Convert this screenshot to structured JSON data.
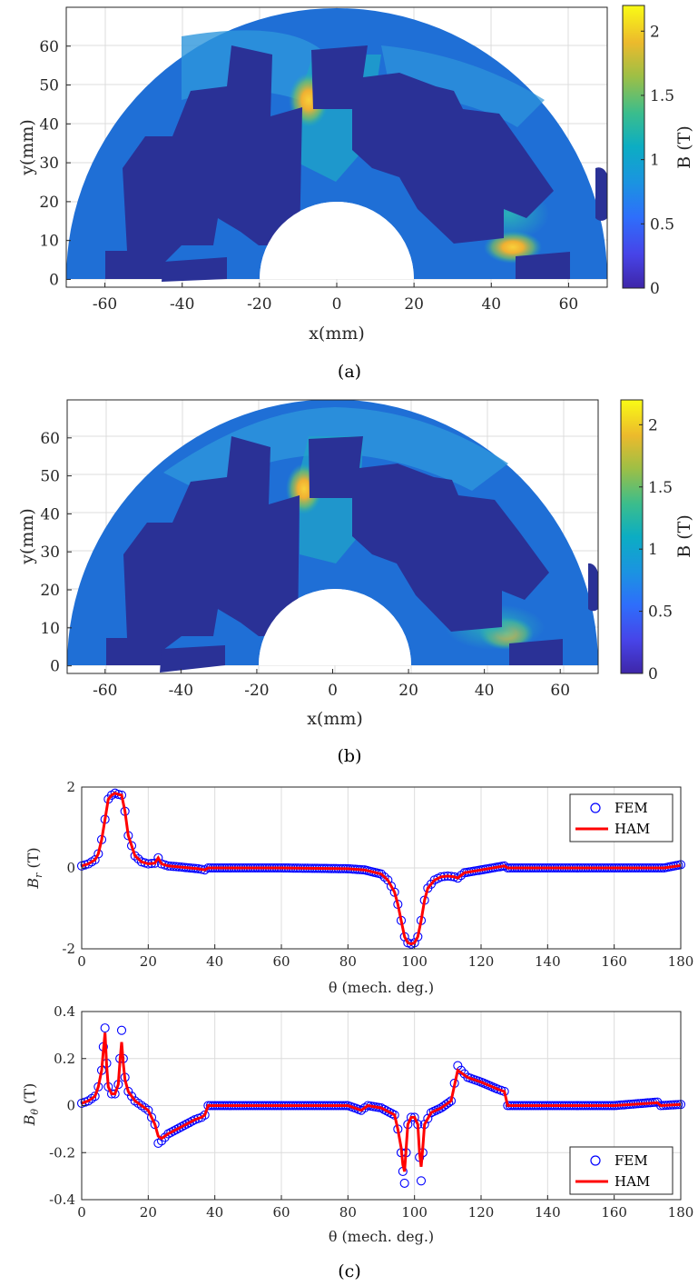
{
  "figure": {
    "caption_a": "(a)",
    "caption_b": "(b)",
    "caption_c": "(c)"
  },
  "colors": {
    "back_iron": "#2a3196",
    "iron_low": "#1f6fd6",
    "iron_mid": "#2d96dc",
    "iron_high": "#1fb3b0",
    "hotspot": "#f6b62e",
    "fem": "#0000ff",
    "ham": "#ff0000",
    "colormap": [
      "#3e26a8",
      "#4744e8",
      "#2e6efb",
      "#1b93e1",
      "#0cadc3",
      "#3bbd8c",
      "#9ebf45",
      "#ecba2c",
      "#f9fb15"
    ]
  },
  "chart_data": [
    {
      "type": "heatmap",
      "id": "a",
      "xlabel": "x(mm)",
      "ylabel": "y(mm)",
      "xlim": [
        -70,
        70
      ],
      "ylim": [
        -2,
        70
      ],
      "xticks": [
        "-60",
        "-40",
        "-20",
        "0",
        "20",
        "40",
        "60"
      ],
      "yticks": [
        "0",
        "10",
        "20",
        "30",
        "40",
        "50",
        "60"
      ],
      "colorbar": {
        "label": "B (T)",
        "range": [
          0,
          2.2
        ],
        "ticks": [
          "0",
          "0.5",
          "1",
          "1.5",
          "2"
        ]
      },
      "grid": true
    },
    {
      "type": "heatmap",
      "id": "b",
      "xlabel": "x(mm)",
      "ylabel": "y(mm)",
      "xlim": [
        -70,
        70
      ],
      "ylim": [
        -2,
        70
      ],
      "xticks": [
        "-60",
        "-40",
        "-20",
        "0",
        "20",
        "40",
        "60"
      ],
      "yticks": [
        "0",
        "10",
        "20",
        "30",
        "40",
        "50",
        "60"
      ],
      "colorbar": {
        "label": "B (T)",
        "range": [
          0,
          2.2
        ],
        "ticks": [
          "0",
          "0.5",
          "1",
          "1.5",
          "2"
        ]
      },
      "grid": true
    },
    {
      "type": "scatter",
      "id": "c-top",
      "xlabel": "θ (mech. deg.)",
      "ylabel": "B_r (T)",
      "ylabel_main": "B",
      "ylabel_sub": "r",
      "ylabel_unit": " (T)",
      "xlim": [
        0,
        180
      ],
      "ylim": [
        -2,
        2
      ],
      "xticks": [
        "0",
        "20",
        "40",
        "60",
        "80",
        "100",
        "120",
        "140",
        "160",
        "180"
      ],
      "yticks": [
        "-2",
        "0",
        "2"
      ],
      "legend": {
        "position": "top-right",
        "entries": [
          "FEM",
          "HAM"
        ]
      },
      "grid": true,
      "series": [
        {
          "name": "FEM",
          "style": "circle",
          "x": [
            0,
            2,
            4,
            5,
            6,
            7,
            8,
            9,
            10,
            11,
            12,
            13,
            14,
            16,
            18,
            20,
            22,
            23,
            24,
            26,
            30,
            35,
            37,
            38,
            45,
            60,
            80,
            85,
            90,
            92,
            94,
            95,
            96,
            97,
            98,
            99,
            100,
            101,
            102,
            103,
            104,
            106,
            108,
            110,
            112,
            113,
            115,
            120,
            127,
            128,
            140,
            160,
            175,
            180
          ],
          "y": [
            0.05,
            0.1,
            0.2,
            0.35,
            0.7,
            1.2,
            1.7,
            1.8,
            1.85,
            1.82,
            1.8,
            1.4,
            0.8,
            0.3,
            0.15,
            0.1,
            0.12,
            0.25,
            0.1,
            0.05,
            0.02,
            -0.02,
            -0.05,
            0.0,
            0.0,
            0.0,
            -0.02,
            -0.05,
            -0.15,
            -0.3,
            -0.6,
            -0.9,
            -1.3,
            -1.7,
            -1.85,
            -1.88,
            -1.85,
            -1.7,
            -1.3,
            -0.8,
            -0.5,
            -0.3,
            -0.22,
            -0.2,
            -0.22,
            -0.25,
            -0.12,
            -0.05,
            0.05,
            0.0,
            0.0,
            0.0,
            0.0,
            0.08
          ]
        },
        {
          "name": "HAM",
          "style": "line",
          "x": [
            0,
            2,
            4,
            5,
            6,
            7,
            8,
            9,
            10,
            11,
            12,
            13,
            14,
            16,
            18,
            20,
            22,
            23,
            24,
            26,
            30,
            35,
            37,
            38,
            45,
            60,
            80,
            85,
            90,
            92,
            94,
            95,
            96,
            97,
            98,
            99,
            100,
            101,
            102,
            103,
            104,
            106,
            108,
            110,
            112,
            113,
            115,
            120,
            127,
            128,
            140,
            160,
            175,
            180
          ],
          "y": [
            0.05,
            0.1,
            0.2,
            0.35,
            0.7,
            1.2,
            1.7,
            1.8,
            1.85,
            1.82,
            1.8,
            1.4,
            0.8,
            0.3,
            0.15,
            0.1,
            0.12,
            0.25,
            0.1,
            0.05,
            0.02,
            -0.02,
            -0.05,
            0.0,
            0.0,
            0.0,
            -0.02,
            -0.05,
            -0.15,
            -0.3,
            -0.6,
            -0.9,
            -1.3,
            -1.7,
            -1.85,
            -1.88,
            -1.85,
            -1.7,
            -1.3,
            -0.8,
            -0.5,
            -0.3,
            -0.22,
            -0.2,
            -0.22,
            -0.25,
            -0.12,
            -0.05,
            0.05,
            0.0,
            0.0,
            0.0,
            0.0,
            0.06
          ]
        }
      ]
    },
    {
      "type": "scatter",
      "id": "c-bottom",
      "xlabel": "θ (mech. deg.)",
      "ylabel": "B_θ (T)",
      "ylabel_main": "B",
      "ylabel_sub": "θ",
      "ylabel_unit": " (T)",
      "xlim": [
        0,
        180
      ],
      "ylim": [
        -0.4,
        0.4
      ],
      "xticks": [
        "0",
        "20",
        "40",
        "60",
        "80",
        "100",
        "120",
        "140",
        "160",
        "180"
      ],
      "yticks": [
        "-0.4",
        "-0.2",
        "0",
        "0.2",
        "0.4"
      ],
      "legend": {
        "position": "bottom-right",
        "entries": [
          "FEM",
          "HAM"
        ]
      },
      "grid": true,
      "series": [
        {
          "name": "FEM",
          "style": "circle",
          "x": [
            0,
            2,
            4,
            5,
            6,
            6.5,
            7,
            7.5,
            8,
            9,
            10,
            11,
            11.5,
            12,
            12.5,
            13,
            14,
            16,
            18,
            20,
            22,
            23,
            24,
            26,
            30,
            34,
            36,
            37,
            38,
            45,
            60,
            80,
            84,
            86,
            90,
            94,
            95,
            96,
            96.5,
            97,
            97.5,
            98,
            99,
            100,
            101,
            101.5,
            102,
            102.5,
            103,
            105,
            108,
            111,
            113,
            114,
            116,
            120,
            125,
            127,
            128,
            140,
            160,
            173,
            174,
            180
          ],
          "y": [
            0.01,
            0.02,
            0.04,
            0.08,
            0.15,
            0.25,
            0.33,
            0.18,
            0.08,
            0.05,
            0.05,
            0.09,
            0.2,
            0.32,
            0.2,
            0.12,
            0.06,
            0.02,
            0.0,
            -0.02,
            -0.08,
            -0.16,
            -0.15,
            -0.12,
            -0.09,
            -0.06,
            -0.05,
            -0.04,
            0.0,
            0.0,
            0.0,
            0.0,
            -0.02,
            0.0,
            -0.01,
            -0.04,
            -0.1,
            -0.2,
            -0.28,
            -0.33,
            -0.2,
            -0.08,
            -0.05,
            -0.05,
            -0.08,
            -0.22,
            -0.32,
            -0.2,
            -0.08,
            -0.03,
            -0.01,
            0.02,
            0.17,
            0.15,
            0.12,
            0.1,
            0.07,
            0.06,
            0.0,
            0.0,
            0.0,
            0.015,
            0.0,
            0.005
          ]
        },
        {
          "name": "HAM",
          "style": "line",
          "x": [
            0,
            2,
            4,
            5,
            6,
            6.5,
            7,
            7.5,
            8,
            9,
            10,
            11,
            11.5,
            12,
            12.5,
            13,
            14,
            16,
            18,
            20,
            22,
            23,
            24,
            26,
            30,
            34,
            36,
            37,
            38,
            45,
            60,
            80,
            84,
            86,
            90,
            94,
            95,
            96,
            96.5,
            97,
            97.5,
            98,
            99,
            100,
            101,
            101.5,
            102,
            102.5,
            103,
            105,
            108,
            111,
            113,
            114,
            116,
            120,
            125,
            127,
            128,
            140,
            160,
            173,
            174,
            180
          ],
          "y": [
            0.01,
            0.02,
            0.04,
            0.08,
            0.15,
            0.23,
            0.31,
            0.17,
            0.08,
            0.05,
            0.05,
            0.09,
            0.19,
            0.27,
            0.18,
            0.11,
            0.06,
            0.02,
            0.0,
            -0.02,
            -0.08,
            -0.13,
            -0.14,
            -0.12,
            -0.09,
            -0.06,
            -0.05,
            -0.04,
            0.0,
            0.0,
            0.0,
            0.0,
            -0.02,
            0.0,
            -0.01,
            -0.04,
            -0.1,
            -0.18,
            -0.25,
            -0.28,
            -0.18,
            -0.08,
            -0.05,
            -0.05,
            -0.08,
            -0.2,
            -0.26,
            -0.18,
            -0.08,
            -0.03,
            -0.01,
            0.02,
            0.15,
            0.14,
            0.12,
            0.1,
            0.07,
            0.06,
            0.0,
            0.0,
            0.0,
            0.012,
            0.0,
            0.005
          ]
        }
      ]
    }
  ]
}
